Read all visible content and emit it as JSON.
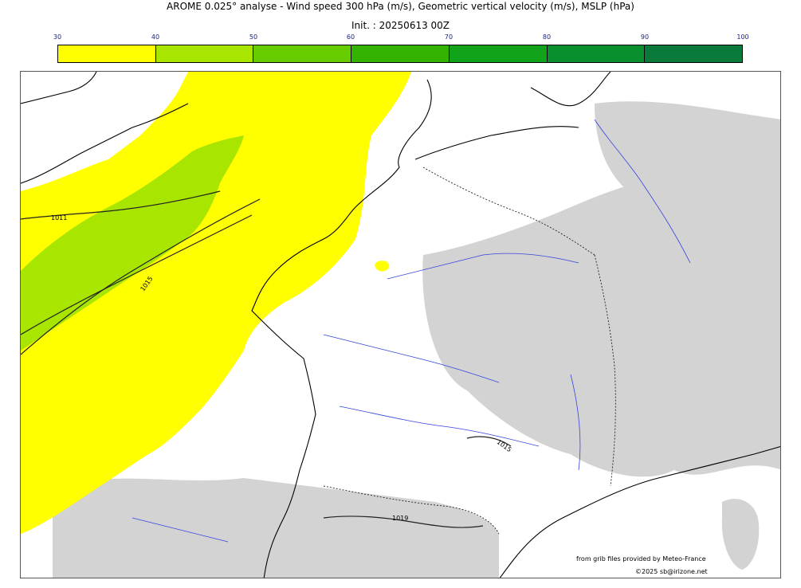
{
  "header": {
    "title": "AROME 0.025° analyse - Wind speed 300 hPa (m/s), Geometric vertical velocity (m/s), MSLP (hPa)",
    "subtitle": "Init. : 20250613 00Z"
  },
  "colorbar": {
    "ticks": [
      "30",
      "40",
      "50",
      "60",
      "70",
      "80",
      "90",
      "100"
    ],
    "colors": [
      "#ffff00",
      "#a8e600",
      "#66cc00",
      "#33b300",
      "#11a31a",
      "#0a8f2e",
      "#0a7a3a",
      "#0a6b4a"
    ]
  },
  "map": {
    "isobar_labels": [
      "1011",
      "1015",
      "1015",
      "1019"
    ],
    "colors": {
      "wind_40": "#ffff00",
      "wind_50": "#a8e600",
      "terrain": "#d3d3d3",
      "terrain_dark": "#b0b0b0",
      "river": "#3344dd",
      "coast": "#000000"
    }
  },
  "credits": {
    "line1": "from grib files provided by Meteo-France",
    "line2": "©2025 sb@irizone.net"
  }
}
